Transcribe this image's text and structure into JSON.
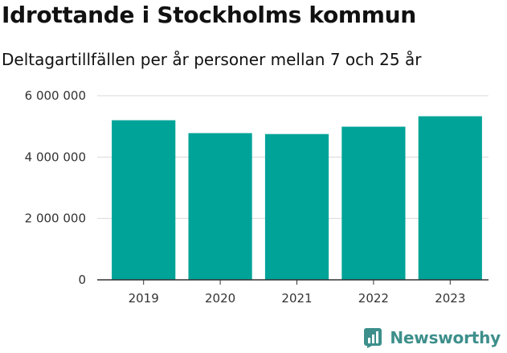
{
  "header": {
    "title": "Idrottande i Stockholms kommun",
    "subtitle": "Deltagartillfällen per år personer mellan 7 och 25 år"
  },
  "brand": {
    "name": "Newsworthy",
    "icon": "newsworthy-logo-icon",
    "color": "#3d8f8b"
  },
  "chart_data": {
    "type": "bar",
    "title": "Idrottande i Stockholms kommun",
    "subtitle": "Deltagartillfällen per år personer mellan 7 och 25 år",
    "xlabel": "",
    "ylabel": "",
    "categories": [
      "2019",
      "2020",
      "2021",
      "2022",
      "2023"
    ],
    "values": [
      5200000,
      4780000,
      4750000,
      4990000,
      5330000
    ],
    "ylim": [
      0,
      6000000
    ],
    "yticks": [
      0,
      2000000,
      4000000,
      6000000
    ],
    "ytick_labels": [
      "0",
      "2 000 000",
      "4 000 000",
      "6 000 000"
    ],
    "grid": true,
    "bar_color": "#00a398"
  }
}
